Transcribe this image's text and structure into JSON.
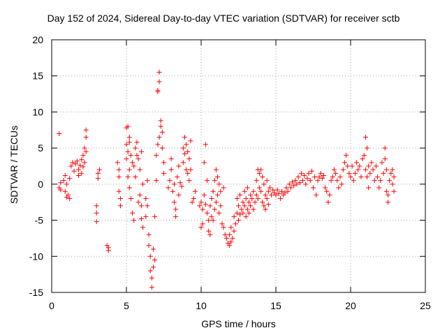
{
  "chart_data": {
    "type": "scatter",
    "title": "Day 152 of 2024, Sidereal Day-to-day VTEC variation (SDTVAR) for receiver sctb",
    "xlabel": "GPS time / hours",
    "ylabel": "SDTVAR / TECUs",
    "xlim": [
      0,
      25
    ],
    "ylim": [
      -15,
      20
    ],
    "xticks": [
      0,
      5,
      10,
      15,
      20,
      25
    ],
    "yticks": [
      -15,
      -10,
      -5,
      0,
      5,
      10,
      15,
      20
    ],
    "grid": true,
    "marker": "+",
    "color": "#ff0000",
    "series": [
      {
        "name": "SDTVAR",
        "points": [
          [
            0.5,
            7.0
          ],
          [
            0.5,
            -0.5
          ],
          [
            0.6,
            -0.8
          ],
          [
            0.6,
            0.2
          ],
          [
            0.8,
            0.5
          ],
          [
            0.9,
            -1.0
          ],
          [
            0.9,
            1.2
          ],
          [
            1.0,
            -1.8
          ],
          [
            1.0,
            0.0
          ],
          [
            1.1,
            -1.5
          ],
          [
            1.2,
            -2.0
          ],
          [
            1.2,
            0.8
          ],
          [
            1.3,
            2.5
          ],
          [
            1.4,
            3.0
          ],
          [
            1.5,
            1.8
          ],
          [
            1.6,
            2.8
          ],
          [
            1.7,
            3.2
          ],
          [
            1.8,
            2.0
          ],
          [
            1.8,
            1.2
          ],
          [
            1.9,
            2.6
          ],
          [
            2.0,
            3.4
          ],
          [
            2.0,
            1.5
          ],
          [
            2.1,
            4.0
          ],
          [
            2.1,
            2.4
          ],
          [
            2.2,
            5.0
          ],
          [
            2.2,
            3.0
          ],
          [
            2.3,
            6.5
          ],
          [
            2.3,
            4.5
          ],
          [
            2.3,
            7.5
          ],
          [
            3.0,
            -3.0
          ],
          [
            3.0,
            -4.0
          ],
          [
            3.0,
            -5.2
          ],
          [
            3.1,
            1.5
          ],
          [
            3.1,
            0.8
          ],
          [
            3.2,
            2.0
          ],
          [
            3.7,
            -8.5
          ],
          [
            3.8,
            -9.2
          ],
          [
            3.8,
            -8.8
          ],
          [
            4.4,
            3.0
          ],
          [
            4.5,
            1.0
          ],
          [
            4.5,
            -1.0
          ],
          [
            4.6,
            -2.0
          ],
          [
            4.6,
            -3.0
          ],
          [
            4.5,
            2.0
          ],
          [
            5.0,
            5.5
          ],
          [
            5.0,
            3.5
          ],
          [
            5.0,
            7.8
          ],
          [
            5.1,
            8.0
          ],
          [
            5.1,
            4.5
          ],
          [
            5.1,
            1.0
          ],
          [
            5.2,
            6.5
          ],
          [
            5.2,
            5.8
          ],
          [
            5.2,
            2.0
          ],
          [
            5.2,
            -0.5
          ],
          [
            5.3,
            4.0
          ],
          [
            5.3,
            -2.0
          ],
          [
            5.4,
            3.0
          ],
          [
            5.4,
            -4.0
          ],
          [
            5.5,
            2.5
          ],
          [
            5.5,
            -5.0
          ],
          [
            5.6,
            5.0
          ],
          [
            5.6,
            1.0
          ],
          [
            5.7,
            5.8
          ],
          [
            5.7,
            4.0
          ],
          [
            5.8,
            3.5
          ],
          [
            5.8,
            -2.5
          ],
          [
            5.9,
            2.0
          ],
          [
            5.9,
            -1.5
          ],
          [
            6.0,
            4.5
          ],
          [
            6.0,
            -3.0
          ],
          [
            6.0,
            -4.8
          ],
          [
            6.1,
            0.0
          ],
          [
            6.1,
            -6.0
          ],
          [
            6.3,
            -4.5
          ],
          [
            6.3,
            -2.0
          ],
          [
            6.4,
            0.5
          ],
          [
            6.4,
            -3.0
          ],
          [
            6.5,
            -7.0
          ],
          [
            6.5,
            -8.5
          ],
          [
            6.6,
            -10.0
          ],
          [
            6.6,
            -12.0
          ],
          [
            6.7,
            -13.0
          ],
          [
            6.7,
            -14.3
          ],
          [
            6.8,
            -11.5
          ],
          [
            6.8,
            -9.0
          ],
          [
            6.9,
            -10.5
          ],
          [
            6.9,
            -4.5
          ],
          [
            7.0,
            0.5
          ],
          [
            7.0,
            4.0
          ],
          [
            7.1,
            5.5
          ],
          [
            7.1,
            13.0
          ],
          [
            7.1,
            12.8
          ],
          [
            7.2,
            15.5
          ],
          [
            7.2,
            14.2
          ],
          [
            7.2,
            6.5
          ],
          [
            7.3,
            8.0
          ],
          [
            7.3,
            8.8
          ],
          [
            7.4,
            7.2
          ],
          [
            7.4,
            5.0
          ],
          [
            7.5,
            3.0
          ],
          [
            7.5,
            1.5
          ],
          [
            7.8,
            -0.5
          ],
          [
            7.9,
            0.5
          ],
          [
            8.0,
            2.0
          ],
          [
            8.0,
            3.5
          ],
          [
            8.1,
            -1.0
          ],
          [
            8.2,
            0.0
          ],
          [
            8.2,
            -2.5
          ],
          [
            8.3,
            -3.5
          ],
          [
            8.3,
            -4.5
          ],
          [
            8.4,
            1.0
          ],
          [
            8.5,
            2.5
          ],
          [
            8.5,
            -1.5
          ],
          [
            8.6,
            0.2
          ],
          [
            8.7,
            -0.3
          ],
          [
            8.8,
            3.0
          ],
          [
            8.8,
            5.0
          ],
          [
            8.9,
            4.2
          ],
          [
            8.9,
            6.5
          ],
          [
            9.0,
            5.5
          ],
          [
            9.0,
            2.0
          ],
          [
            9.1,
            4.5
          ],
          [
            9.1,
            1.5
          ],
          [
            9.2,
            3.5
          ],
          [
            9.2,
            0.5
          ],
          [
            9.3,
            6.0
          ],
          [
            9.3,
            2.0
          ],
          [
            9.4,
            -2.5
          ],
          [
            9.5,
            -2.0
          ],
          [
            9.6,
            -1.0
          ],
          [
            9.9,
            -3.0
          ],
          [
            10.0,
            -2.5
          ],
          [
            10.0,
            -6.0
          ],
          [
            10.1,
            -3.5
          ],
          [
            10.1,
            -5.5
          ],
          [
            10.2,
            3.0
          ],
          [
            10.2,
            -1.5
          ],
          [
            10.3,
            5.5
          ],
          [
            10.3,
            -2.8
          ],
          [
            10.4,
            0.5
          ],
          [
            10.4,
            -4.0
          ],
          [
            10.5,
            -5.0
          ],
          [
            10.5,
            -6.5
          ],
          [
            10.6,
            -7.0
          ],
          [
            10.6,
            -3.0
          ],
          [
            10.7,
            -2.0
          ],
          [
            10.7,
            -4.5
          ],
          [
            10.8,
            -1.0
          ],
          [
            10.8,
            -5.0
          ],
          [
            10.9,
            0.5
          ],
          [
            10.9,
            -3.5
          ],
          [
            11.0,
            2.0
          ],
          [
            11.0,
            -2.5
          ],
          [
            11.1,
            1.0
          ],
          [
            11.1,
            -1.5
          ],
          [
            11.2,
            0.0
          ],
          [
            11.2,
            -4.0
          ],
          [
            11.3,
            -3.0
          ],
          [
            11.3,
            -1.0
          ],
          [
            11.4,
            -5.5
          ],
          [
            11.5,
            -6.0
          ],
          [
            11.5,
            -0.5
          ],
          [
            11.6,
            -7.0
          ],
          [
            11.7,
            -7.5
          ],
          [
            11.8,
            -8.2
          ],
          [
            11.9,
            -8.5
          ],
          [
            11.9,
            -7.0
          ],
          [
            12.0,
            -8.0
          ],
          [
            12.0,
            -6.0
          ],
          [
            12.1,
            -7.5
          ],
          [
            12.2,
            -6.5
          ],
          [
            12.2,
            -4.5
          ],
          [
            12.3,
            -5.5
          ],
          [
            12.4,
            -4.0
          ],
          [
            12.4,
            -2.0
          ],
          [
            12.5,
            -5.0
          ],
          [
            12.5,
            -3.0
          ],
          [
            12.6,
            -4.2
          ],
          [
            12.6,
            -1.5
          ],
          [
            12.7,
            -3.5
          ],
          [
            12.8,
            -4.0
          ],
          [
            12.8,
            -2.5
          ],
          [
            12.9,
            -3.0
          ],
          [
            12.9,
            -1.0
          ],
          [
            13.0,
            -4.5
          ],
          [
            13.0,
            -2.0
          ],
          [
            13.1,
            -3.5
          ],
          [
            13.1,
            -0.5
          ],
          [
            13.2,
            -2.5
          ],
          [
            13.2,
            -4.0
          ],
          [
            13.3,
            -3.0
          ],
          [
            13.3,
            -1.5
          ],
          [
            13.4,
            -2.0
          ],
          [
            13.5,
            -3.5
          ],
          [
            13.5,
            -1.0
          ],
          [
            13.6,
            -2.5
          ],
          [
            13.7,
            0.5
          ],
          [
            13.7,
            -1.5
          ],
          [
            13.8,
            2.0
          ],
          [
            13.8,
            -2.0
          ],
          [
            13.9,
            1.5
          ],
          [
            13.9,
            -0.5
          ],
          [
            14.0,
            2.0
          ],
          [
            14.0,
            -1.0
          ],
          [
            14.1,
            1.0
          ],
          [
            14.1,
            -2.5
          ],
          [
            14.2,
            0.0
          ],
          [
            14.2,
            -3.0
          ],
          [
            14.3,
            -1.5
          ],
          [
            14.3,
            -3.5
          ],
          [
            14.4,
            0.5
          ],
          [
            14.4,
            -2.0
          ],
          [
            14.5,
            -1.0
          ],
          [
            14.5,
            -2.8
          ],
          [
            14.6,
            -0.5
          ],
          [
            14.7,
            -1.5
          ],
          [
            14.8,
            -0.8
          ],
          [
            14.9,
            -1.2
          ],
          [
            15.0,
            -1.5
          ],
          [
            15.1,
            -0.8
          ],
          [
            15.2,
            -1.3
          ],
          [
            15.3,
            -2.0
          ],
          [
            15.4,
            -1.0
          ],
          [
            15.5,
            -1.5
          ],
          [
            15.6,
            -1.2
          ],
          [
            15.7,
            -0.5
          ],
          [
            15.8,
            -1.0
          ],
          [
            15.9,
            0.0
          ],
          [
            16.0,
            -0.5
          ],
          [
            16.1,
            0.3
          ],
          [
            16.2,
            -0.2
          ],
          [
            16.3,
            0.5
          ],
          [
            16.4,
            0.0
          ],
          [
            16.5,
            1.0
          ],
          [
            16.6,
            0.2
          ],
          [
            16.7,
            1.5
          ],
          [
            16.8,
            0.5
          ],
          [
            16.9,
            1.2
          ],
          [
            17.0,
            0.0
          ],
          [
            17.1,
            0.8
          ],
          [
            17.2,
            1.5
          ],
          [
            17.3,
            0.5
          ],
          [
            17.4,
            1.8
          ],
          [
            17.5,
            -0.5
          ],
          [
            17.6,
            1.0
          ],
          [
            17.7,
            -1.5
          ],
          [
            17.8,
            0.5
          ],
          [
            17.9,
            1.0
          ],
          [
            18.0,
            1.5
          ],
          [
            18.1,
            0.8
          ],
          [
            18.2,
            1.2
          ],
          [
            18.3,
            -0.5
          ],
          [
            18.4,
            -1.0
          ],
          [
            18.5,
            -2.5
          ],
          [
            18.6,
            -1.5
          ],
          [
            18.7,
            0.5
          ],
          [
            18.8,
            1.0
          ],
          [
            18.9,
            2.0
          ],
          [
            19.0,
            1.5
          ],
          [
            19.1,
            0.5
          ],
          [
            19.2,
            -0.5
          ],
          [
            19.3,
            1.0
          ],
          [
            19.4,
            0.0
          ],
          [
            19.5,
            2.0
          ],
          [
            19.6,
            3.0
          ],
          [
            19.7,
            4.0
          ],
          [
            19.8,
            2.5
          ],
          [
            19.9,
            1.5
          ],
          [
            20.0,
            1.0
          ],
          [
            20.1,
            2.5
          ],
          [
            20.2,
            0.5
          ],
          [
            20.3,
            1.5
          ],
          [
            20.4,
            3.0
          ],
          [
            20.5,
            2.0
          ],
          [
            20.6,
            2.5
          ],
          [
            20.7,
            1.0
          ],
          [
            20.8,
            3.5
          ],
          [
            20.9,
            4.0
          ],
          [
            21.0,
            6.5
          ],
          [
            21.0,
            2.0
          ],
          [
            21.1,
            5.0
          ],
          [
            21.1,
            1.0
          ],
          [
            21.2,
            2.5
          ],
          [
            21.2,
            -0.5
          ],
          [
            21.3,
            1.5
          ],
          [
            21.4,
            3.0
          ],
          [
            21.5,
            2.0
          ],
          [
            21.6,
            0.5
          ],
          [
            21.7,
            2.5
          ],
          [
            21.8,
            1.0
          ],
          [
            21.9,
            -0.5
          ],
          [
            22.0,
            0.5
          ],
          [
            22.1,
            3.0
          ],
          [
            22.2,
            1.5
          ],
          [
            22.3,
            5.0
          ],
          [
            22.3,
            3.5
          ],
          [
            22.4,
            2.0
          ],
          [
            22.4,
            -1.0
          ],
          [
            22.5,
            -2.5
          ],
          [
            22.5,
            -1.5
          ],
          [
            22.6,
            0.5
          ],
          [
            22.7,
            1.5
          ],
          [
            22.8,
            2.0
          ],
          [
            22.8,
            0.0
          ],
          [
            22.9,
            -1.0
          ],
          [
            22.9,
            1.0
          ]
        ]
      }
    ]
  }
}
